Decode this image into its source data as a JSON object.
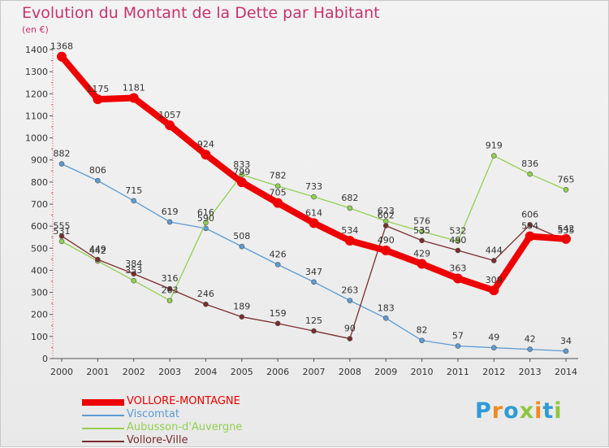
{
  "page": {
    "title": "Evolution du Montant de la Dette par Habitant",
    "unit": "(en €)"
  },
  "logo": {
    "text": "Proxiti",
    "letters": [
      {
        "ch": "P",
        "color": "#2f9bd6"
      },
      {
        "ch": "r",
        "color": "#f08a1e"
      },
      {
        "ch": "o",
        "color": "#2f9bd6"
      },
      {
        "ch": "x",
        "color": "#8dc63f"
      },
      {
        "ch": "i",
        "color": "#f08a1e"
      },
      {
        "ch": "t",
        "color": "#2f9bd6"
      },
      {
        "ch": "i",
        "color": "#8dc63f"
      }
    ]
  },
  "chart_data": {
    "type": "line",
    "title": "Evolution du Montant de la Dette par Habitant",
    "ylabel": "(en €)",
    "xlabel": "",
    "x": [
      "2000",
      "2001",
      "2002",
      "2003",
      "2004",
      "2005",
      "2006",
      "2007",
      "2008",
      "2009",
      "2010",
      "2011",
      "2012",
      "2013",
      "2014"
    ],
    "ylim": [
      0,
      1400
    ],
    "yticks": [
      0,
      100,
      200,
      300,
      400,
      500,
      600,
      700,
      800,
      900,
      1000,
      1100,
      1200,
      1300,
      1400
    ],
    "grid": false,
    "legend": "bottom-left",
    "series": [
      {
        "name": "VOLLORE-MONTAGNE",
        "color": "#ee0000",
        "emphasis": true,
        "values": [
          1368,
          1175,
          1181,
          1057,
          924,
          799,
          705,
          614,
          534,
          490,
          429,
          363,
          309,
          554,
          542
        ]
      },
      {
        "name": "Viscomtat",
        "color": "#5b9bd5",
        "values": [
          882,
          806,
          715,
          619,
          590,
          508,
          426,
          347,
          263,
          183,
          82,
          57,
          49,
          42,
          34
        ]
      },
      {
        "name": "Aubusson-d'Auvergne",
        "color": "#92d050",
        "values": [
          531,
          442,
          353,
          263,
          616,
          833,
          782,
          733,
          682,
          623,
          576,
          532,
          919,
          836,
          765
        ]
      },
      {
        "name": "Vollore-Ville",
        "color": "#7b2c2c",
        "values": [
          555,
          449,
          384,
          316,
          246,
          189,
          159,
          125,
          90,
          602,
          535,
          490,
          444,
          606,
          535
        ]
      }
    ]
  }
}
